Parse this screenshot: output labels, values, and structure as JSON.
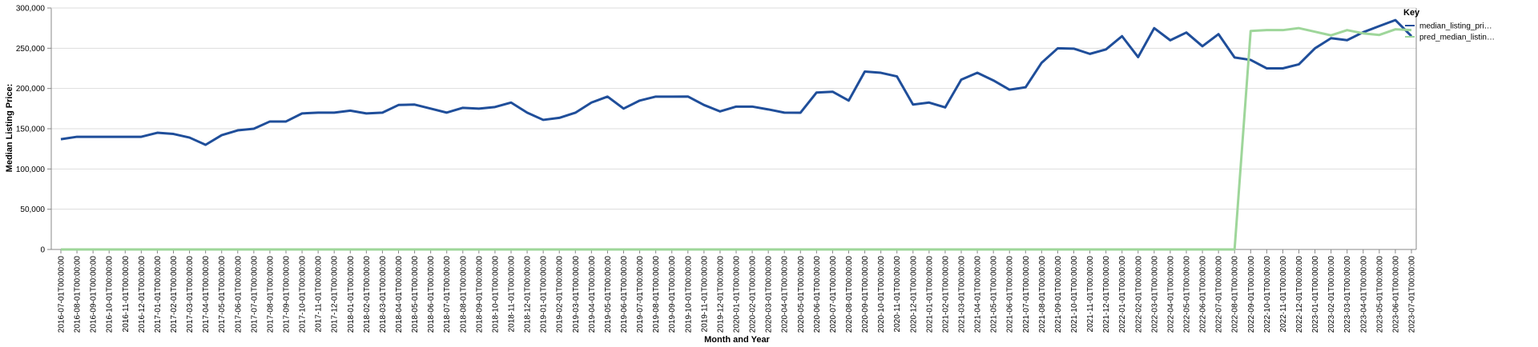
{
  "chart_data": {
    "type": "line",
    "xlabel": "Month and Year",
    "ylabel": "Median Listing Price:",
    "ylim": [
      0,
      300000
    ],
    "y_ticks": [
      "0",
      "50,000",
      "100,000",
      "150,000",
      "200,000",
      "250,000",
      "300,000"
    ],
    "y_tick_values": [
      0,
      50000,
      100000,
      150000,
      200000,
      250000,
      300000
    ],
    "grid": true,
    "legend": {
      "title": "Key",
      "placement": "right"
    },
    "x": [
      "2016-07-01T00:00:00",
      "2016-08-01T00:00:00",
      "2016-09-01T00:00:00",
      "2016-10-01T00:00:00",
      "2016-11-01T00:00:00",
      "2016-12-01T00:00:00",
      "2017-01-01T00:00:00",
      "2017-02-01T00:00:00",
      "2017-03-01T00:00:00",
      "2017-04-01T00:00:00",
      "2017-05-01T00:00:00",
      "2017-06-01T00:00:00",
      "2017-07-01T00:00:00",
      "2017-08-01T00:00:00",
      "2017-09-01T00:00:00",
      "2017-10-01T00:00:00",
      "2017-11-01T00:00:00",
      "2017-12-01T00:00:00",
      "2018-01-01T00:00:00",
      "2018-02-01T00:00:00",
      "2018-03-01T00:00:00",
      "2018-04-01T00:00:00",
      "2018-05-01T00:00:00",
      "2018-06-01T00:00:00",
      "2018-07-01T00:00:00",
      "2018-08-01T00:00:00",
      "2018-09-01T00:00:00",
      "2018-10-01T00:00:00",
      "2018-11-01T00:00:00",
      "2018-12-01T00:00:00",
      "2019-01-01T00:00:00",
      "2019-02-01T00:00:00",
      "2019-03-01T00:00:00",
      "2019-04-01T00:00:00",
      "2019-05-01T00:00:00",
      "2019-06-01T00:00:00",
      "2019-07-01T00:00:00",
      "2019-08-01T00:00:00",
      "2019-09-01T00:00:00",
      "2019-10-01T00:00:00",
      "2019-11-01T00:00:00",
      "2019-12-01T00:00:00",
      "2020-01-01T00:00:00",
      "2020-02-01T00:00:00",
      "2020-03-01T00:00:00",
      "2020-04-01T00:00:00",
      "2020-05-01T00:00:00",
      "2020-06-01T00:00:00",
      "2020-07-01T00:00:00",
      "2020-08-01T00:00:00",
      "2020-09-01T00:00:00",
      "2020-10-01T00:00:00",
      "2020-11-01T00:00:00",
      "2020-12-01T00:00:00",
      "2021-01-01T00:00:00",
      "2021-02-01T00:00:00",
      "2021-03-01T00:00:00",
      "2021-04-01T00:00:00",
      "2021-05-01T00:00:00",
      "2021-06-01T00:00:00",
      "2021-07-01T00:00:00",
      "2021-08-01T00:00:00",
      "2021-09-01T00:00:00",
      "2021-10-01T00:00:00",
      "2021-11-01T00:00:00",
      "2021-12-01T00:00:00",
      "2022-01-01T00:00:00",
      "2022-02-01T00:00:00",
      "2022-03-01T00:00:00",
      "2022-04-01T00:00:00",
      "2022-05-01T00:00:00",
      "2022-06-01T00:00:00",
      "2022-07-01T00:00:00",
      "2022-08-01T00:00:00",
      "2022-09-01T00:00:00",
      "2022-10-01T00:00:00",
      "2022-11-01T00:00:00",
      "2022-12-01T00:00:00",
      "2023-01-01T00:00:00",
      "2023-02-01T00:00:00",
      "2023-03-01T00:00:00",
      "2023-04-01T00:00:00",
      "2023-05-01T00:00:00",
      "2023-06-01T00:00:00",
      "2023-07-01T00:00:00"
    ],
    "series": [
      {
        "name": "median_listing_pri…",
        "color": "#1f4e9a",
        "values": [
          137000,
          140000,
          140000,
          140000,
          140000,
          140000,
          145000,
          143500,
          139000,
          130000,
          142000,
          148000,
          150000,
          159000,
          159000,
          169000,
          170000,
          170000,
          172500,
          169000,
          170000,
          179500,
          180000,
          175000,
          170000,
          176000,
          175000,
          177000,
          182500,
          170000,
          161000,
          163500,
          169900,
          182500,
          189900,
          175000,
          185000,
          189900,
          189900,
          190000,
          179500,
          171500,
          177500,
          177500,
          174000,
          170000,
          169900,
          195000,
          196000,
          185000,
          221000,
          219500,
          215000,
          180000,
          182500,
          176500,
          211000,
          219500,
          210000,
          198500,
          201500,
          232000,
          249900,
          249500,
          243000,
          248500,
          265000,
          239000,
          275000,
          259900,
          269500,
          252500,
          267500,
          238500,
          235500,
          225000,
          225000,
          230000,
          249900,
          262500,
          260000,
          269900,
          277500,
          285000,
          265000
        ]
      },
      {
        "name": "pred_median_listin…",
        "color": "#9ed69a",
        "values": [
          0,
          0,
          0,
          0,
          0,
          0,
          0,
          0,
          0,
          0,
          0,
          0,
          0,
          0,
          0,
          0,
          0,
          0,
          0,
          0,
          0,
          0,
          0,
          0,
          0,
          0,
          0,
          0,
          0,
          0,
          0,
          0,
          0,
          0,
          0,
          0,
          0,
          0,
          0,
          0,
          0,
          0,
          0,
          0,
          0,
          0,
          0,
          0,
          0,
          0,
          0,
          0,
          0,
          0,
          0,
          0,
          0,
          0,
          0,
          0,
          0,
          0,
          0,
          0,
          0,
          0,
          0,
          0,
          0,
          0,
          0,
          0,
          0,
          0,
          271500,
          272500,
          272500,
          275000,
          270500,
          266000,
          272500,
          268500,
          266500,
          273500,
          272500
        ]
      }
    ]
  }
}
